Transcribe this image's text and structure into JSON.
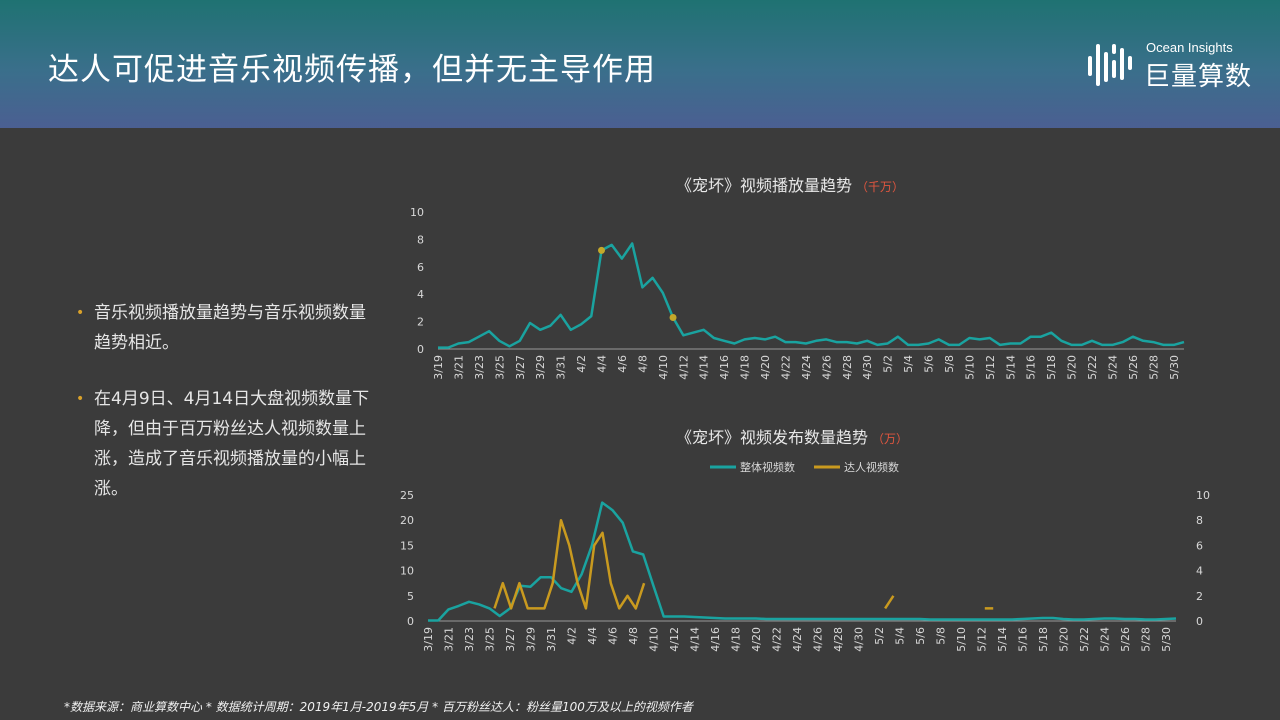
{
  "header": {
    "title": "达人可促进音乐视频传播，但并无主导作用"
  },
  "logo": {
    "en": "Ocean Insights",
    "cn": "巨量算数",
    "icon": "bars-logo-icon"
  },
  "bullets": [
    "音乐视频播放量趋势与音乐视频数量趋势相近。",
    "在4月9日、4月14日大盘视频数量下降，但由于百万粉丝达人视频数量上涨，造成了音乐视频播放量的小幅上涨。"
  ],
  "footnote": "*数据来源：商业算数中心 * 数据统计周期：2019年1月-2019年5月 * 百万粉丝达人：粉丝量100万及以上的视频作者",
  "chart_data": [
    {
      "type": "line",
      "title": "《宠坏》视频播放量趋势",
      "unit": "（千万）",
      "ylim": [
        0,
        10
      ],
      "yticks": [
        0,
        2,
        4,
        6,
        8,
        10
      ],
      "x_labels": [
        "3/19",
        "3/21",
        "3/23",
        "3/25",
        "3/27",
        "3/29",
        "3/31",
        "4/2",
        "4/4",
        "4/6",
        "4/8",
        "4/10",
        "4/12",
        "4/14",
        "4/16",
        "4/18",
        "4/20",
        "4/22",
        "4/24",
        "4/26",
        "4/28",
        "4/30",
        "5/2",
        "5/4",
        "5/6",
        "5/8",
        "5/10",
        "5/12",
        "5/14",
        "5/16",
        "5/18",
        "5/20",
        "5/22",
        "5/24",
        "5/26",
        "5/28",
        "5/30"
      ],
      "color": "#1aa3a0",
      "marker_color": "#c4a82a",
      "series": [
        {
          "values": [
            0.1,
            0.1,
            0.4,
            0.5,
            0.9,
            1.3,
            0.6,
            0.2,
            0.6,
            1.9,
            1.4,
            1.7,
            2.5,
            1.4,
            1.8,
            2.4,
            7.2,
            7.6,
            6.6,
            7.7,
            4.5,
            5.2,
            4.1,
            2.3,
            1.0,
            1.2,
            1.4,
            0.8,
            0.6,
            0.4,
            0.7,
            0.8,
            0.7,
            0.9,
            0.5,
            0.5,
            0.4,
            0.6,
            0.7,
            0.5,
            0.5,
            0.4,
            0.6,
            0.3,
            0.4,
            0.9,
            0.3,
            0.3,
            0.4,
            0.7,
            0.3,
            0.3,
            0.8,
            0.7,
            0.8,
            0.3,
            0.4,
            0.4,
            0.9,
            0.9,
            1.2,
            0.6,
            0.3,
            0.3,
            0.6,
            0.3,
            0.3,
            0.5,
            0.9,
            0.6,
            0.5,
            0.3,
            0.3,
            0.5
          ]
        }
      ],
      "markers": [
        {
          "x": "4/4",
          "y": 7.2
        },
        {
          "x": "4/11",
          "y": 2.3
        }
      ]
    },
    {
      "type": "line",
      "title": "《宠坏》视频发布数量趋势",
      "unit": "（万）",
      "legend_position": "top",
      "ylim": [
        0,
        25
      ],
      "yticks": [
        0,
        5,
        10,
        15,
        20,
        25
      ],
      "y2lim": [
        0,
        10
      ],
      "y2ticks": [
        0,
        2,
        4,
        6,
        8,
        10
      ],
      "x_labels": [
        "3/19",
        "3/21",
        "3/23",
        "3/25",
        "3/27",
        "3/29",
        "3/31",
        "4/2",
        "4/4",
        "4/6",
        "4/8",
        "4/10",
        "4/12",
        "4/14",
        "4/16",
        "4/18",
        "4/20",
        "4/22",
        "4/24",
        "4/26",
        "4/28",
        "4/30",
        "5/2",
        "5/4",
        "5/6",
        "5/8",
        "5/10",
        "5/12",
        "5/14",
        "5/16",
        "5/18",
        "5/20",
        "5/22",
        "5/24",
        "5/26",
        "5/28",
        "5/30"
      ],
      "series": [
        {
          "name": "整体视频数",
          "axis": "left",
          "color": "#1aa3a0",
          "values": [
            0.1,
            0.1,
            2.3,
            3.0,
            3.8,
            3.3,
            2.5,
            1.0,
            2.5,
            7.0,
            6.8,
            8.7,
            8.7,
            6.5,
            5.8,
            9.3,
            15.0,
            23.5,
            22.0,
            19.5,
            13.8,
            13.2,
            7.0,
            0.9,
            0.9,
            0.9,
            0.8,
            0.7,
            0.6,
            0.5,
            0.5,
            0.5,
            0.5,
            0.4,
            0.4,
            0.4,
            0.4,
            0.4,
            0.4,
            0.4,
            0.4,
            0.4,
            0.4,
            0.4,
            0.4,
            0.4,
            0.4,
            0.4,
            0.4,
            0.3,
            0.3,
            0.3,
            0.3,
            0.3,
            0.3,
            0.3,
            0.3,
            0.3,
            0.4,
            0.5,
            0.6,
            0.6,
            0.4,
            0.3,
            0.3,
            0.4,
            0.5,
            0.5,
            0.4,
            0.4,
            0.3,
            0.3,
            0.4,
            0.5
          ]
        },
        {
          "name": "达人视频数",
          "axis": "right",
          "color": "#c99a1f",
          "values": [
            null,
            null,
            null,
            null,
            null,
            null,
            null,
            null,
            1.0,
            3.0,
            1.0,
            3.0,
            1.0,
            1.0,
            1.0,
            3.0,
            8.0,
            6.0,
            3.0,
            1.0,
            6.0,
            7.0,
            3.0,
            1.0,
            2.0,
            1.0,
            3.0,
            null,
            null,
            null,
            null,
            null,
            null,
            null,
            null,
            null,
            null,
            null,
            null,
            null,
            null,
            null,
            null,
            null,
            null,
            null,
            null,
            null,
            null,
            null,
            null,
            null,
            null,
            null,
            null,
            1.0,
            2.0,
            null,
            null,
            null,
            null,
            null,
            null,
            null,
            null,
            null,
            null,
            1.0,
            1.0,
            null,
            null,
            null,
            null,
            null,
            null,
            null,
            null,
            null,
            null,
            null,
            null,
            null,
            null,
            null,
            null,
            null,
            null,
            null,
            null,
            null,
            null
          ]
        }
      ]
    }
  ]
}
